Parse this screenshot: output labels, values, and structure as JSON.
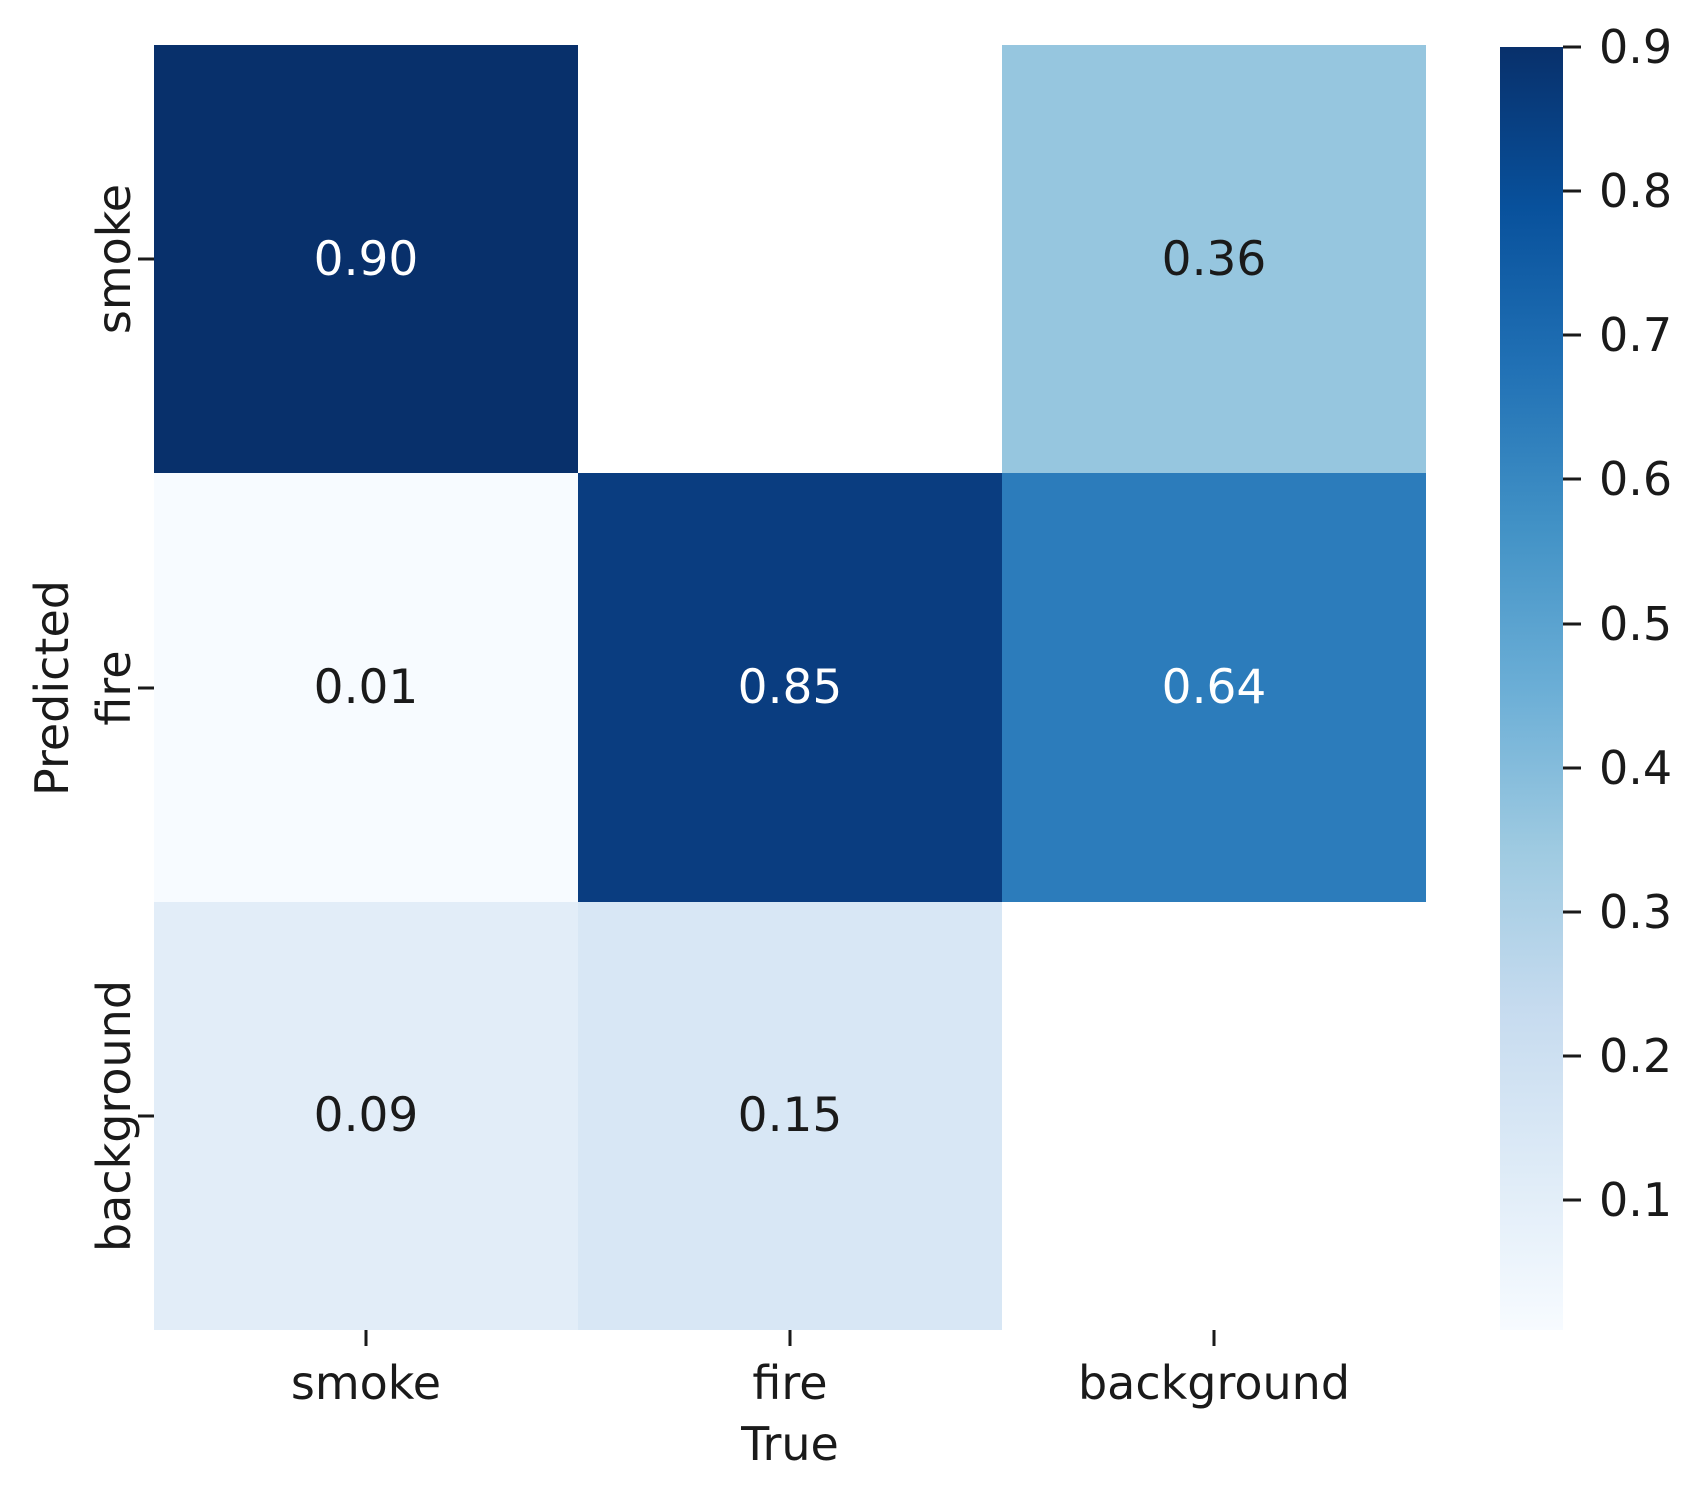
{
  "figure": {
    "background_color": "#ffffff",
    "text_color": "#1a1a1a"
  },
  "chart_data": {
    "type": "heatmap",
    "title": "",
    "xlabel": "True",
    "ylabel": "Predicted",
    "x_categories": [
      "smoke",
      "fire",
      "background"
    ],
    "y_categories": [
      "smoke",
      "fire",
      "background"
    ],
    "matrix": [
      [
        0.9,
        null,
        0.36
      ],
      [
        0.01,
        0.85,
        0.64
      ],
      [
        0.09,
        0.15,
        null
      ]
    ],
    "cell_labels": [
      [
        "0.90",
        null,
        "0.36"
      ],
      [
        "0.01",
        "0.85",
        "0.64"
      ],
      [
        "0.09",
        "0.15",
        null
      ]
    ],
    "cell_colors": [
      [
        "#08306b",
        null,
        "#96c6df"
      ],
      [
        "#f7fbff",
        "#0a3d80",
        "#2c7cbb"
      ],
      [
        "#e2edf8",
        "#d8e7f5",
        null
      ]
    ],
    "cell_text_colors": [
      [
        "#ffffff",
        null,
        "#1a1a1a"
      ],
      [
        "#1a1a1a",
        "#ffffff",
        "#ffffff"
      ],
      [
        "#1a1a1a",
        "#1a1a1a",
        null
      ]
    ],
    "masked_cells_note": "null cells are rendered as blank white (masked)",
    "colormap": "Blues",
    "colormap_stops_bottom_to_top": [
      "#f7fbff",
      "#deebf7",
      "#c6dbef",
      "#9ecae1",
      "#6baed6",
      "#4292c6",
      "#2171b5",
      "#08519c",
      "#08306b"
    ],
    "vmin": 0.01,
    "vmax": 0.9,
    "colorbar_tick_values": [
      0.9,
      0.8,
      0.7,
      0.6,
      0.5,
      0.4,
      0.3,
      0.2,
      0.1
    ],
    "colorbar_tick_labels": [
      "0.9",
      "0.8",
      "0.7",
      "0.6",
      "0.5",
      "0.4",
      "0.3",
      "0.2",
      "0.1"
    ],
    "legend_position": "colorbar-right",
    "grid": false
  }
}
